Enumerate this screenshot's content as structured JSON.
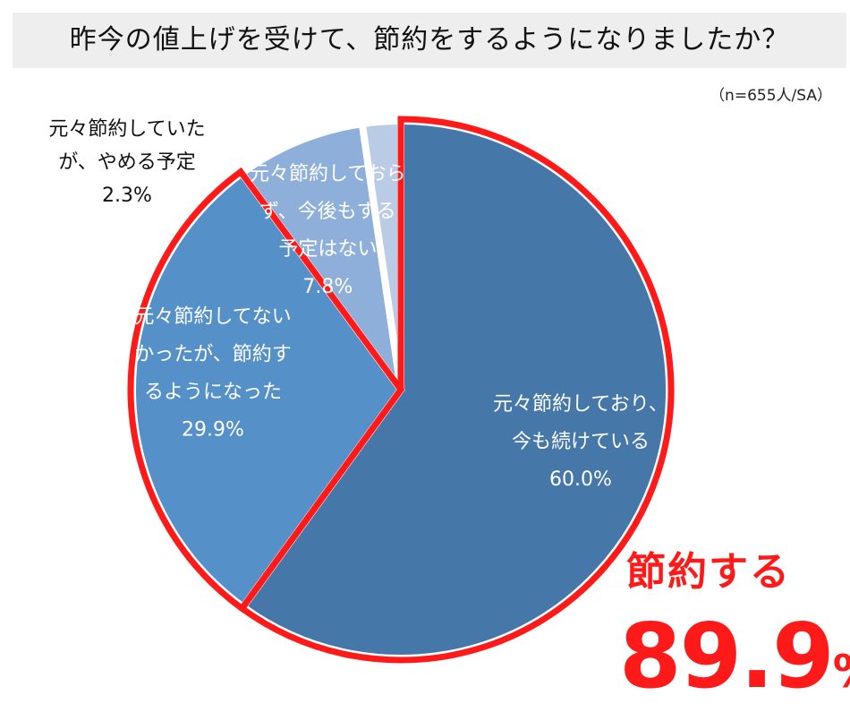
{
  "title": "昨今の値上げを受けて、節約をするようになりましたか？",
  "sample_note": "（n=655人/SA）",
  "chart_data": {
    "type": "pie",
    "unit": "%",
    "slices": [
      {
        "lines": [
          "元々節約しており、",
          "今も続けている"
        ],
        "value": 60.0,
        "pct": "60.0%",
        "color": "#4677a9"
      },
      {
        "lines": [
          "元々節約してない",
          "かったが、節約す",
          "るようになった"
        ],
        "value": 29.9,
        "pct": "29.9%",
        "color": "#5590c8"
      },
      {
        "lines": [
          "元々節約しておら",
          "ず、今後もする",
          "予定はない"
        ],
        "value": 7.8,
        "pct": "7.8%",
        "color": "#8eafd9"
      },
      {
        "lines": [
          "元々節約していた",
          "が、やめる予定"
        ],
        "value": 2.3,
        "pct": "2.3%",
        "color": "#b9cbe5"
      }
    ],
    "highlight_color": "#ff1a1a"
  },
  "outside_label": {
    "line1": "元々節約していた",
    "line2": "が、やめる予定",
    "line3": "2.3%"
  },
  "callout": {
    "label": "節約する",
    "value": "89.9",
    "unit": "%"
  }
}
